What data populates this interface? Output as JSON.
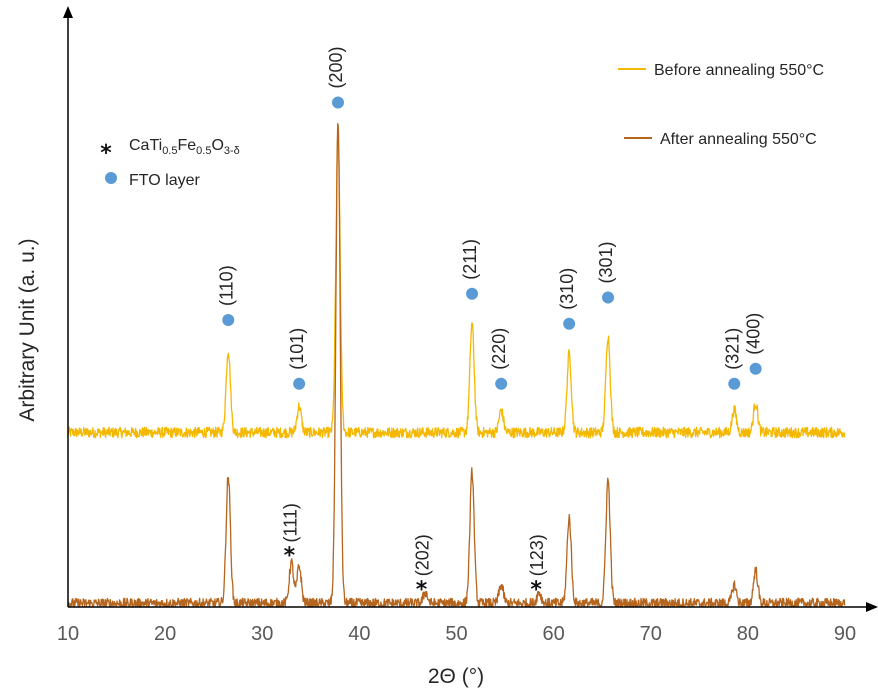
{
  "chart_data": {
    "type": "line",
    "title": "",
    "xlabel": "2Θ (°)",
    "ylabel": "Arbitrary Unit (a. u.)",
    "xlim": [
      10,
      90
    ],
    "xticks": [
      "10",
      "20",
      "30",
      "40",
      "50",
      "60",
      "70",
      "80",
      "90"
    ],
    "grid": false,
    "legend_position": "top-right",
    "series": [
      {
        "name": "Before annealing 550°C",
        "color": "#f5b800",
        "baseline": 0.46,
        "peaks": [
          {
            "x": 26.5,
            "h": 0.22
          },
          {
            "x": 33.8,
            "h": 0.07
          },
          {
            "x": 37.8,
            "h": 0.79
          },
          {
            "x": 51.6,
            "h": 0.29
          },
          {
            "x": 54.6,
            "h": 0.06
          },
          {
            "x": 61.6,
            "h": 0.21
          },
          {
            "x": 65.6,
            "h": 0.26
          },
          {
            "x": 78.6,
            "h": 0.06
          },
          {
            "x": 80.8,
            "h": 0.08
          }
        ]
      },
      {
        "name": "After annealing 550°C",
        "color": "#b5651d",
        "baseline": 0.0,
        "peaks": [
          {
            "x": 26.5,
            "h": 0.34
          },
          {
            "x": 33.0,
            "h": 0.11
          },
          {
            "x": 33.8,
            "h": 0.1
          },
          {
            "x": 37.8,
            "h": 1.29
          },
          {
            "x": 46.8,
            "h": 0.03
          },
          {
            "x": 51.6,
            "h": 0.35
          },
          {
            "x": 54.6,
            "h": 0.05
          },
          {
            "x": 58.5,
            "h": 0.03
          },
          {
            "x": 61.6,
            "h": 0.23
          },
          {
            "x": 65.6,
            "h": 0.33
          },
          {
            "x": 78.6,
            "h": 0.05
          },
          {
            "x": 80.8,
            "h": 0.09
          }
        ]
      }
    ],
    "fto_markers": [
      {
        "x": 26.5,
        "y": 0.76,
        "label": "(110)"
      },
      {
        "x": 33.8,
        "y": 0.59,
        "label": "(101)"
      },
      {
        "x": 37.8,
        "y": 1.34,
        "label": "(200)"
      },
      {
        "x": 51.6,
        "y": 0.83,
        "label": "(211)"
      },
      {
        "x": 54.6,
        "y": 0.59,
        "label": "(220)"
      },
      {
        "x": 61.6,
        "y": 0.75,
        "label": "(310)"
      },
      {
        "x": 65.6,
        "y": 0.82,
        "label": "(301)"
      },
      {
        "x": 78.6,
        "y": 0.59,
        "label": "(321)"
      },
      {
        "x": 80.8,
        "y": 0.63,
        "label": "(400)"
      }
    ],
    "phase_markers": [
      {
        "x": 32.8,
        "y": 0.14,
        "label": "(111)"
      },
      {
        "x": 46.4,
        "y": 0.05,
        "label": "(202)"
      },
      {
        "x": 58.2,
        "y": 0.05,
        "label": "(123)"
      }
    ],
    "marker_legend": [
      {
        "symbol": "*",
        "text": "CaTi0.5Fe0.5O3-δ"
      },
      {
        "symbol": "dot",
        "text": "FTO layer"
      }
    ],
    "marker_color": "#5b9bd5"
  },
  "legend_text": {
    "phase_main": "CaTi",
    "phase_sub1": "0.5",
    "phase_fe": "Fe",
    "phase_sub2": "0.5",
    "phase_o": "O",
    "phase_sub3": "3-δ",
    "fto": "FTO layer"
  }
}
